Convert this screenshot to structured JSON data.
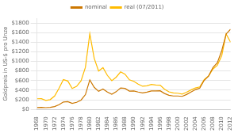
{
  "chart_data": {
    "type": "line",
    "ylabel": "Goldpreis in US-$ pro Unze",
    "x": [
      1968,
      1969,
      1970,
      1971,
      1972,
      1973,
      1974,
      1975,
      1976,
      1977,
      1978,
      1979,
      1980,
      1981,
      1982,
      1983,
      1984,
      1985,
      1986,
      1987,
      1988,
      1989,
      1990,
      1991,
      1992,
      1993,
      1994,
      1995,
      1996,
      1997,
      1998,
      1999,
      2000,
      2001,
      2002,
      2003,
      2004,
      2005,
      2006,
      2007,
      2008,
      2009,
      2010,
      2011,
      2012
    ],
    "series": [
      {
        "name": "nominal",
        "color": "#cc7700",
        "values": [
          39,
          41,
          36,
          41,
          58,
          97,
          154,
          161,
          125,
          148,
          193,
          307,
          615,
          460,
          376,
          424,
          361,
          317,
          368,
          447,
          437,
          381,
          383,
          362,
          344,
          360,
          384,
          384,
          388,
          331,
          294,
          279,
          279,
          271,
          310,
          363,
          410,
          444,
          604,
          695,
          872,
          972,
          1224,
          1571,
          1669
        ]
      },
      {
        "name": "real (07/2011)",
        "color": "#ffbb00",
        "values": [
          222,
          224,
          188,
          204,
          279,
          440,
          620,
          591,
          437,
          481,
          594,
          875,
          1575,
          1065,
          800,
          869,
          708,
          598,
          672,
          782,
          733,
          616,
          584,
          527,
          482,
          493,
          519,
          508,
          505,
          419,
          366,
          342,
          337,
          320,
          357,
          405,
          447,
          469,
          618,
          695,
          840,
          921,
          1121,
          1571,
          1400
        ]
      }
    ],
    "xlim": [
      1968,
      2012
    ],
    "xticks": [
      1968,
      1970,
      1972,
      1974,
      1976,
      1978,
      1980,
      1982,
      1984,
      1986,
      1988,
      1990,
      1992,
      1994,
      1996,
      1998,
      2000,
      2002,
      2004,
      2006,
      2008,
      2010,
      2012
    ],
    "ylim": [
      0,
      1900
    ],
    "yticks": [
      {
        "value": 0,
        "label": "$0"
      },
      {
        "value": 200,
        "label": "$200"
      },
      {
        "value": 400,
        "label": "$400"
      },
      {
        "value": 600,
        "label": "$600"
      },
      {
        "value": 800,
        "label": "$800"
      },
      {
        "value": 1000,
        "label": "$1000"
      },
      {
        "value": 1200,
        "label": "$1200"
      },
      {
        "value": 1400,
        "label": "$1400"
      },
      {
        "value": 1600,
        "label": "$1600"
      },
      {
        "value": 1800,
        "label": "$1800"
      }
    ],
    "grid": "y",
    "legend": "top"
  }
}
